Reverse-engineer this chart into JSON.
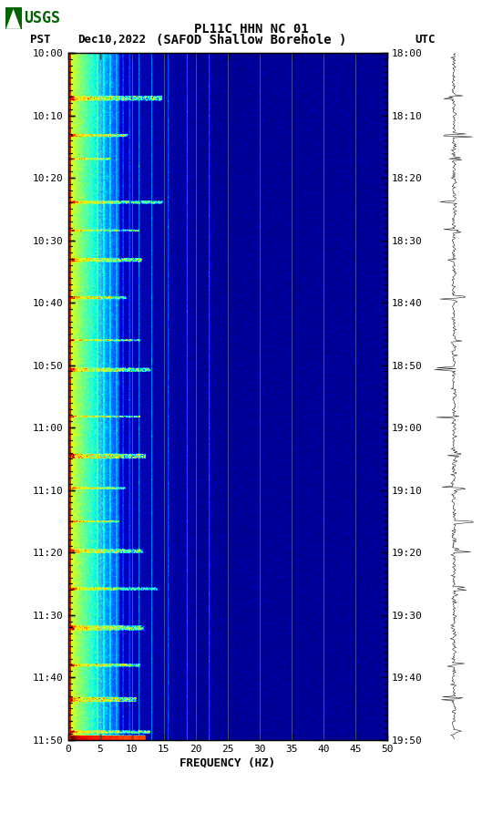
{
  "title_line1": "PL11C HHN NC 01",
  "title_line2": "(SAFOD Shallow Borehole )",
  "date_label": "Dec10,2022",
  "left_tz": "PST",
  "right_tz": "UTC",
  "left_times": [
    "10:00",
    "10:10",
    "10:20",
    "10:30",
    "10:40",
    "10:50",
    "11:00",
    "11:10",
    "11:20",
    "11:30",
    "11:40",
    "11:50"
  ],
  "right_times": [
    "18:00",
    "18:10",
    "18:20",
    "18:30",
    "18:40",
    "18:50",
    "19:00",
    "19:10",
    "19:20",
    "19:30",
    "19:40",
    "19:50"
  ],
  "freq_min": 0,
  "freq_max": 50,
  "freq_ticks": [
    0,
    5,
    10,
    15,
    20,
    25,
    30,
    35,
    40,
    45,
    50
  ],
  "freq_label": "FREQUENCY (HZ)",
  "n_time_steps": 720,
  "n_freq_steps": 500,
  "bg_color": "#00008B",
  "usgs_color": "#006400",
  "grid_color": "#888888",
  "font_family": "monospace"
}
